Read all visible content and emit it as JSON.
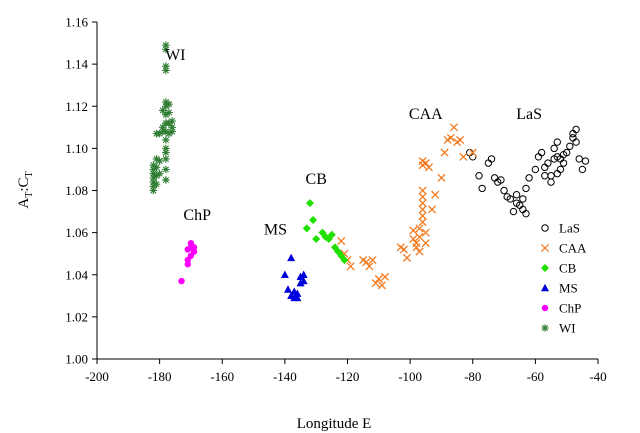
{
  "chart_data": {
    "type": "scatter",
    "title": "",
    "xlabel": "Longitude E",
    "ylabel": {
      "main": "A",
      "sub1": "T",
      "sep": ":C",
      "sub2": "T"
    },
    "xlim": [
      -200,
      -40
    ],
    "ylim": [
      1.0,
      1.16
    ],
    "x_ticks": [
      -200,
      -180,
      -160,
      -140,
      -120,
      -100,
      -80,
      -60,
      -40
    ],
    "y_ticks": [
      1.0,
      1.02,
      1.04,
      1.06,
      1.08,
      1.1,
      1.12,
      1.14,
      1.16
    ],
    "x_tick_labels": [
      "-200",
      "-180",
      "-160",
      "-140",
      "-120",
      "-100",
      "-80",
      "-60",
      "-40"
    ],
    "y_tick_labels": [
      "1.00",
      "1.02",
      "1.04",
      "1.06",
      "1.08",
      "1.10",
      "1.12",
      "1.14",
      "1.16"
    ],
    "grid": false,
    "legend_position": "right",
    "cluster_labels": [
      {
        "text": "WI",
        "x": -175,
        "y": 1.142
      },
      {
        "text": "ChP",
        "x": -168,
        "y": 1.066
      },
      {
        "text": "MS",
        "x": -143,
        "y": 1.059
      },
      {
        "text": "CB",
        "x": -130,
        "y": 1.083
      },
      {
        "text": "CAA",
        "x": -95,
        "y": 1.114
      },
      {
        "text": "LaS",
        "x": -62,
        "y": 1.114
      }
    ],
    "series": [
      {
        "name": "LaS",
        "marker": "circle-open",
        "color": "#000000",
        "points": [
          [
            -81,
            1.098
          ],
          [
            -80,
            1.096
          ],
          [
            -78,
            1.087
          ],
          [
            -77,
            1.081
          ],
          [
            -75,
            1.093
          ],
          [
            -74,
            1.095
          ],
          [
            -73,
            1.086
          ],
          [
            -72,
            1.084
          ],
          [
            -71,
            1.085
          ],
          [
            -70,
            1.08
          ],
          [
            -69,
            1.077
          ],
          [
            -68,
            1.076
          ],
          [
            -67,
            1.07
          ],
          [
            -66,
            1.074
          ],
          [
            -66,
            1.078
          ],
          [
            -65,
            1.073
          ],
          [
            -64,
            1.071
          ],
          [
            -64,
            1.076
          ],
          [
            -63,
            1.069
          ],
          [
            -63,
            1.081
          ],
          [
            -62,
            1.086
          ],
          [
            -60,
            1.09
          ],
          [
            -59,
            1.096
          ],
          [
            -58,
            1.098
          ],
          [
            -57,
            1.091
          ],
          [
            -56,
            1.093
          ],
          [
            -55,
            1.084
          ],
          [
            -55,
            1.087
          ],
          [
            -54,
            1.1
          ],
          [
            -54,
            1.095
          ],
          [
            -53,
            1.096
          ],
          [
            -53,
            1.103
          ],
          [
            -52,
            1.095
          ],
          [
            -52,
            1.09
          ],
          [
            -51,
            1.097
          ],
          [
            -51,
            1.093
          ],
          [
            -50,
            1.098
          ],
          [
            -49,
            1.101
          ],
          [
            -48,
            1.107
          ],
          [
            -48,
            1.105
          ],
          [
            -47,
            1.109
          ],
          [
            -47,
            1.103
          ],
          [
            -46,
            1.095
          ],
          [
            -45,
            1.09
          ],
          [
            -44,
            1.094
          ],
          [
            -53,
            1.088
          ],
          [
            -57,
            1.087
          ]
        ]
      },
      {
        "name": "CAA",
        "marker": "x",
        "color": "#f47b20",
        "points": [
          [
            -122,
            1.056
          ],
          [
            -121,
            1.05
          ],
          [
            -120,
            1.047
          ],
          [
            -119,
            1.044
          ],
          [
            -115,
            1.047
          ],
          [
            -114,
            1.046
          ],
          [
            -113,
            1.044
          ],
          [
            -112,
            1.047
          ],
          [
            -111,
            1.036
          ],
          [
            -110,
            1.038
          ],
          [
            -109,
            1.035
          ],
          [
            -108,
            1.039
          ],
          [
            -103,
            1.053
          ],
          [
            -102,
            1.052
          ],
          [
            -101,
            1.048
          ],
          [
            -99,
            1.061
          ],
          [
            -99,
            1.057
          ],
          [
            -98,
            1.055
          ],
          [
            -98,
            1.053
          ],
          [
            -97,
            1.051
          ],
          [
            -97,
            1.058
          ],
          [
            -97,
            1.062
          ],
          [
            -96,
            1.065
          ],
          [
            -96,
            1.068
          ],
          [
            -96,
            1.071
          ],
          [
            -96,
            1.074
          ],
          [
            -96,
            1.077
          ],
          [
            -96,
            1.08
          ],
          [
            -96,
            1.092
          ],
          [
            -96,
            1.094
          ],
          [
            -95,
            1.093
          ],
          [
            -95,
            1.06
          ],
          [
            -95,
            1.055
          ],
          [
            -94,
            1.091
          ],
          [
            -93,
            1.071
          ],
          [
            -92,
            1.078
          ],
          [
            -90,
            1.086
          ],
          [
            -89,
            1.098
          ],
          [
            -88,
            1.104
          ],
          [
            -87,
            1.105
          ],
          [
            -86,
            1.11
          ],
          [
            -85,
            1.103
          ],
          [
            -84,
            1.104
          ],
          [
            -83,
            1.096
          ],
          [
            -80,
            1.098
          ]
        ]
      },
      {
        "name": "CB",
        "marker": "diamond",
        "color": "#1fe000",
        "points": [
          [
            -133,
            1.062
          ],
          [
            -132,
            1.074
          ],
          [
            -131,
            1.066
          ],
          [
            -130,
            1.057
          ],
          [
            -128,
            1.06
          ],
          [
            -127,
            1.058
          ],
          [
            -126,
            1.057
          ],
          [
            -125,
            1.059
          ],
          [
            -124,
            1.053
          ],
          [
            -123,
            1.051
          ],
          [
            -122,
            1.049
          ],
          [
            -121,
            1.047
          ]
        ]
      },
      {
        "name": "MS",
        "marker": "triangle",
        "color": "#0000dd",
        "points": [
          [
            -140,
            1.04
          ],
          [
            -139,
            1.033
          ],
          [
            -138,
            1.048
          ],
          [
            -138,
            1.03
          ],
          [
            -137,
            1.029
          ],
          [
            -137,
            1.032
          ],
          [
            -136,
            1.031
          ],
          [
            -135,
            1.036
          ],
          [
            -135,
            1.039
          ],
          [
            -134,
            1.04
          ],
          [
            -134,
            1.037
          ],
          [
            -136,
            1.029
          ]
        ]
      },
      {
        "name": "ChP",
        "marker": "circle-filled",
        "color": "#ff00ff",
        "points": [
          [
            -173,
            1.037
          ],
          [
            -171,
            1.045
          ],
          [
            -171,
            1.047
          ],
          [
            -170,
            1.055
          ],
          [
            -170,
            1.053
          ],
          [
            -170,
            1.049
          ],
          [
            -169,
            1.051
          ],
          [
            -169,
            1.053
          ],
          [
            -171,
            1.052
          ]
        ]
      },
      {
        "name": "WI",
        "marker": "asterisk",
        "color": "#2e7d32",
        "points": [
          [
            -182,
            1.08
          ],
          [
            -182,
            1.082
          ],
          [
            -182,
            1.084
          ],
          [
            -182,
            1.086
          ],
          [
            -182,
            1.088
          ],
          [
            -182,
            1.09
          ],
          [
            -182,
            1.092
          ],
          [
            -181,
            1.083
          ],
          [
            -181,
            1.087
          ],
          [
            -181,
            1.091
          ],
          [
            -181,
            1.095
          ],
          [
            -181,
            1.107
          ],
          [
            -180,
            1.088
          ],
          [
            -180,
            1.094
          ],
          [
            -180,
            1.107
          ],
          [
            -179,
            1.108
          ],
          [
            -179,
            1.11
          ],
          [
            -179,
            1.118
          ],
          [
            -178,
            1.085
          ],
          [
            -178,
            1.09
          ],
          [
            -178,
            1.095
          ],
          [
            -178,
            1.098
          ],
          [
            -178,
            1.1
          ],
          [
            -178,
            1.104
          ],
          [
            -178,
            1.108
          ],
          [
            -178,
            1.112
          ],
          [
            -178,
            1.116
          ],
          [
            -178,
            1.12
          ],
          [
            -178,
            1.122
          ],
          [
            -178,
            1.137
          ],
          [
            -178,
            1.139
          ],
          [
            -178,
            1.147
          ],
          [
            -178,
            1.149
          ],
          [
            -177,
            1.107
          ],
          [
            -177,
            1.112
          ],
          [
            -177,
            1.117
          ],
          [
            -177,
            1.121
          ],
          [
            -176,
            1.108
          ],
          [
            -176,
            1.11
          ],
          [
            -176,
            1.113
          ]
        ]
      }
    ]
  }
}
